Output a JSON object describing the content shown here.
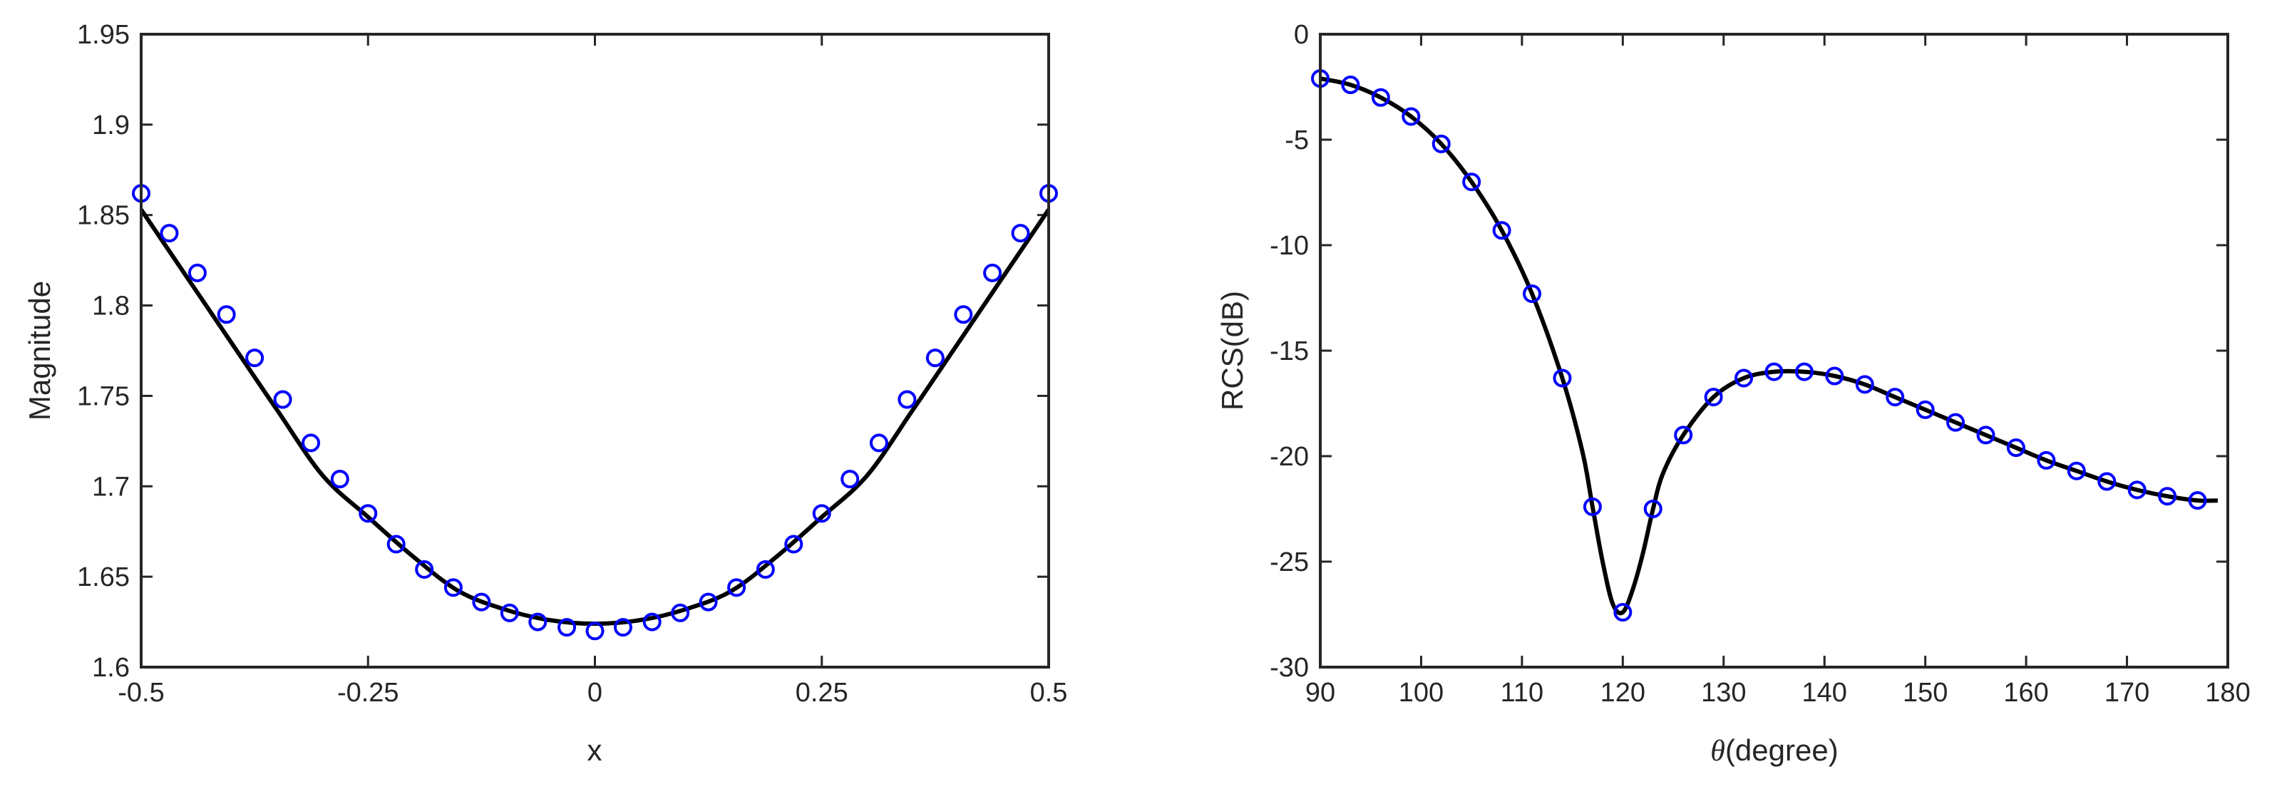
{
  "chart_data": [
    {
      "type": "line",
      "title": "",
      "xlabel": "x",
      "ylabel": "Magnitude",
      "xlim": [
        -0.5,
        0.5
      ],
      "ylim": [
        1.6,
        1.95
      ],
      "xticks": [
        -0.5,
        -0.25,
        0,
        0.25,
        0.5
      ],
      "xtick_labels": [
        "-0.5",
        "-0.25",
        "0",
        "0.25",
        "0.5"
      ],
      "yticks": [
        1.6,
        1.65,
        1.7,
        1.75,
        1.8,
        1.85,
        1.9,
        1.95
      ],
      "ytick_labels": [
        "1.6",
        "1.65",
        "1.7",
        "1.75",
        "1.8",
        "1.85",
        "1.9",
        "1.95"
      ],
      "grid": false,
      "legend": "none",
      "series": [
        {
          "style": "solid-line",
          "color": "#000000",
          "x": [
            -0.5,
            -0.45,
            -0.4,
            -0.35,
            -0.3,
            -0.25,
            -0.2,
            -0.15,
            -0.1,
            -0.05,
            0,
            0.05,
            0.1,
            0.15,
            0.2,
            0.25,
            0.3,
            0.35,
            0.4,
            0.45,
            0.5
          ],
          "y": [
            1.853,
            1.816,
            1.779,
            1.742,
            1.706,
            1.683,
            1.661,
            1.642,
            1.632,
            1.626,
            1.624,
            1.626,
            1.632,
            1.642,
            1.661,
            1.683,
            1.706,
            1.742,
            1.779,
            1.816,
            1.853
          ]
        },
        {
          "style": "circle-markers",
          "color": "#0000ff",
          "x": [
            -0.5,
            -0.469,
            -0.438,
            -0.406,
            -0.375,
            -0.344,
            -0.313,
            -0.281,
            -0.25,
            -0.219,
            -0.188,
            -0.156,
            -0.125,
            -0.094,
            -0.063,
            -0.031,
            0,
            0.031,
            0.063,
            0.094,
            0.125,
            0.156,
            0.188,
            0.219,
            0.25,
            0.281,
            0.313,
            0.344,
            0.375,
            0.406,
            0.438,
            0.469,
            0.5
          ],
          "y": [
            1.862,
            1.84,
            1.818,
            1.795,
            1.771,
            1.748,
            1.724,
            1.704,
            1.685,
            1.668,
            1.654,
            1.644,
            1.636,
            1.63,
            1.625,
            1.622,
            1.62,
            1.622,
            1.625,
            1.63,
            1.636,
            1.644,
            1.654,
            1.668,
            1.685,
            1.704,
            1.724,
            1.748,
            1.771,
            1.795,
            1.818,
            1.84,
            1.862
          ]
        }
      ]
    },
    {
      "type": "line",
      "title": "",
      "xlabel": "θ(degree)",
      "ylabel": "RCS(dB)",
      "xlim": [
        90,
        180
      ],
      "ylim": [
        -30,
        0
      ],
      "xticks": [
        90,
        100,
        110,
        120,
        130,
        140,
        150,
        160,
        170,
        180
      ],
      "xtick_labels": [
        "90",
        "100",
        "110",
        "120",
        "130",
        "140",
        "150",
        "160",
        "170",
        "180"
      ],
      "yticks": [
        -30,
        -25,
        -20,
        -15,
        -10,
        -5,
        0
      ],
      "ytick_labels": [
        "-30",
        "-25",
        "-20",
        "-15",
        "-10",
        "-5",
        "0"
      ],
      "grid": false,
      "legend": "none",
      "series": [
        {
          "style": "solid-line",
          "color": "#000000",
          "x": [
            90,
            93,
            96,
            99,
            102,
            105,
            108,
            111,
            114,
            116,
            117,
            118,
            119,
            120,
            121,
            122,
            123,
            124,
            126,
            129,
            132,
            135,
            138,
            141,
            144,
            147,
            150,
            153,
            156,
            159,
            162,
            165,
            168,
            171,
            174,
            177,
            179
          ],
          "y": [
            -2.1,
            -2.4,
            -3.0,
            -3.9,
            -5.2,
            -7.0,
            -9.3,
            -12.3,
            -16.3,
            -19.8,
            -22.4,
            -25.0,
            -27.0,
            -27.4,
            -26.3,
            -24.6,
            -22.5,
            -20.8,
            -19.0,
            -17.2,
            -16.3,
            -16.0,
            -16.0,
            -16.2,
            -16.6,
            -17.2,
            -17.8,
            -18.4,
            -19.0,
            -19.6,
            -20.2,
            -20.7,
            -21.2,
            -21.6,
            -21.9,
            -22.1,
            -22.1
          ]
        },
        {
          "style": "circle-markers",
          "color": "#0000ff",
          "x": [
            90,
            93,
            96,
            99,
            102,
            105,
            108,
            111,
            114,
            117,
            120,
            123,
            126,
            129,
            132,
            135,
            138,
            141,
            144,
            147,
            150,
            153,
            156,
            159,
            162,
            165,
            168,
            171,
            174,
            177
          ],
          "y": [
            -2.1,
            -2.4,
            -3.0,
            -3.9,
            -5.2,
            -7.0,
            -9.3,
            -12.3,
            -16.3,
            -22.4,
            -27.4,
            -22.5,
            -19.0,
            -17.2,
            -16.3,
            -16.0,
            -16.0,
            -16.2,
            -16.6,
            -17.2,
            -17.8,
            -18.4,
            -19.0,
            -19.6,
            -20.2,
            -20.7,
            -21.2,
            -21.6,
            -21.9,
            -22.1
          ]
        }
      ]
    }
  ]
}
